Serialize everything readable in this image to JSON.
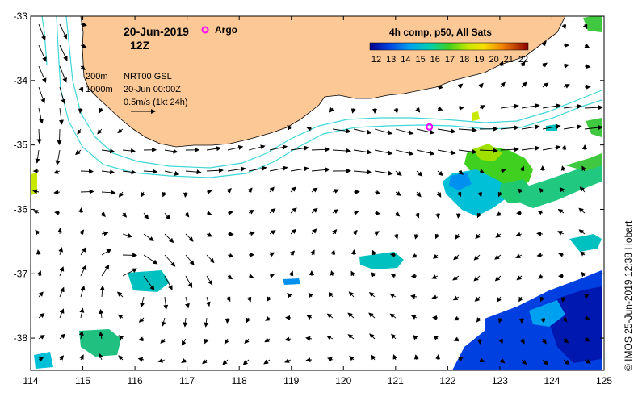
{
  "map": {
    "date": "20-Jun-2019",
    "hour": "12Z",
    "argo_label": "Argo",
    "product_label": "4h comp, p50, All Sats",
    "colorbar_ticks": [
      "12",
      "13",
      "14",
      "15",
      "16",
      "17",
      "18",
      "19",
      "20",
      "21",
      "22"
    ],
    "colorbar_range": [
      12,
      22
    ],
    "contour_labels": [
      "200m",
      "1000m"
    ],
    "altimetry_label": "NRT00 GSL",
    "analysis_time": "20-Jun 00:00Z",
    "velocity_scale": "0.5m/s (1kt 24h)",
    "credit": "© IMOS 25-Jun-2019 12:38 Hobart",
    "lon_ticks": [
      "114",
      "115",
      "116",
      "117",
      "118",
      "119",
      "120",
      "121",
      "122",
      "123",
      "124",
      "125"
    ],
    "lat_ticks": [
      "-33",
      "-34",
      "-35",
      "-36",
      "-37",
      "-38"
    ],
    "lon_range": [
      114,
      125
    ],
    "lat_range": [
      -38.5,
      -33
    ],
    "argo_float": {
      "lon": 121.65,
      "lat": -34.72
    },
    "land_color": "#fbc896",
    "contour_color": "#3fd7d7",
    "colormap": [
      "#00008b",
      "#0040e0",
      "#0090f0",
      "#00c8d0",
      "#20d08c",
      "#40d020",
      "#a0e000",
      "#f0f000",
      "#f8b000",
      "#e05000",
      "#8b0000"
    ]
  }
}
